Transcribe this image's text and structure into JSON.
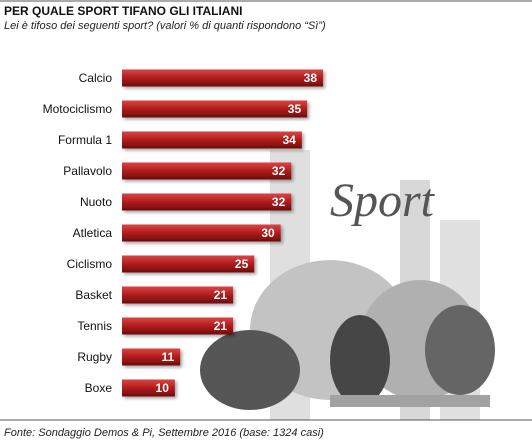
{
  "chart_data": {
    "type": "bar",
    "orientation": "horizontal",
    "title": "PER QUALE SPORT TIFANO GLI ITALIANI",
    "subtitle": "Lei è tifoso dei seguenti sport? (valori % di quanti rispondono “Sì”)",
    "source": "Fonte: Sondaggio Demos & Pi, Settembre 2016 (base: 1324 casi)",
    "background_text": "Sport",
    "categories": [
      "Calcio",
      "Motociclismo",
      "Formula 1",
      "Pallavolo",
      "Nuoto",
      "Atletica",
      "Ciclismo",
      "Basket",
      "Tennis",
      "Rugby",
      "Boxe"
    ],
    "values": [
      38,
      35,
      34,
      32,
      32,
      30,
      25,
      21,
      21,
      11,
      10
    ],
    "color": "#b01c1c"
  }
}
